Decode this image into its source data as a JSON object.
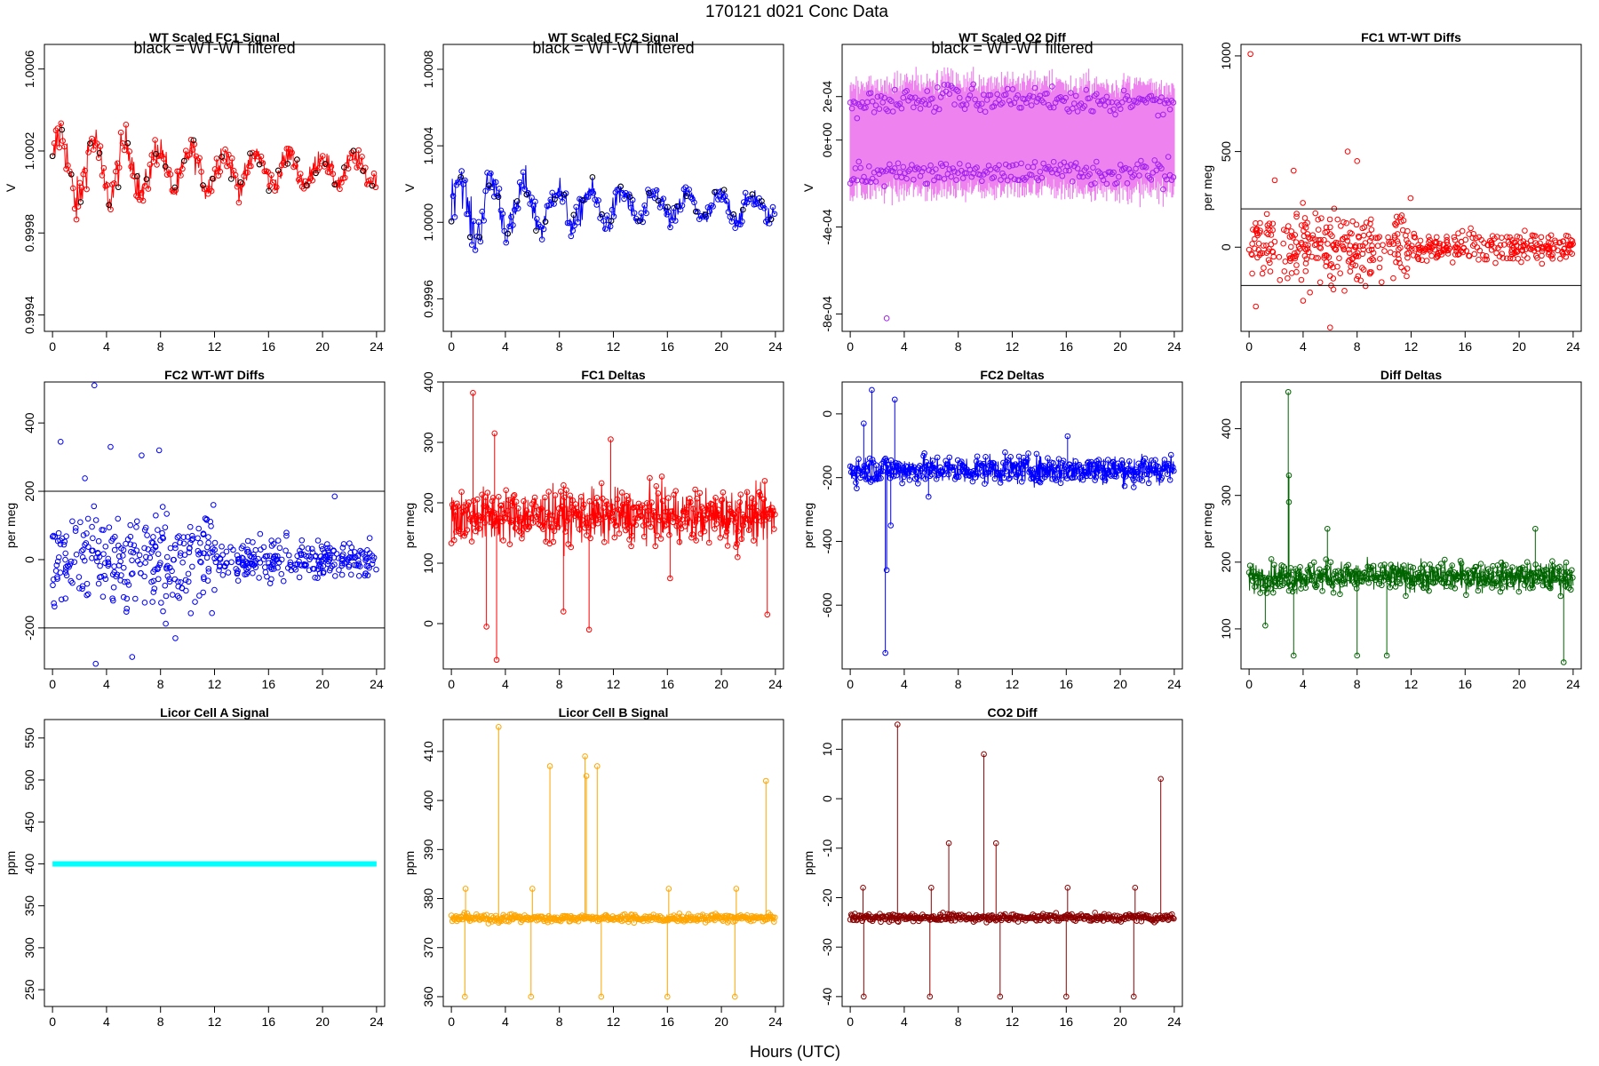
{
  "figure": {
    "title": "170121    d021    Conc Data",
    "xlabel": "Hours (UTC)"
  },
  "chart_data": [
    {
      "id": "fc1sig",
      "type": "line",
      "title": "WT Scaled FC1 Signal",
      "ylabel": "V",
      "note": "black = WT-WT filtered",
      "color": "#ff0000",
      "ylim": [
        0.99932,
        1.00072
      ],
      "yticks": [
        0.9994,
        0.9998,
        1.0002,
        1.0006
      ],
      "ytick_labels": [
        "0.9994",
        "0.9998",
        "1.0002",
        "1.0006"
      ],
      "xlim": [
        -0.6,
        24.6
      ],
      "xticks": [
        0,
        4,
        8,
        12,
        16,
        20,
        24
      ],
      "series": {
        "baseline": 1.00011,
        "amp": 0.00014,
        "noise": 4e-05,
        "style": "fc",
        "n": 380,
        "overlay_color": "#000000"
      }
    },
    {
      "id": "fc2sig",
      "type": "line",
      "title": "WT Scaled FC2 Signal",
      "ylabel": "V",
      "note": "black = WT-WT filtered",
      "color": "#0000ff",
      "ylim": [
        0.99943,
        1.00093
      ],
      "yticks": [
        0.9996,
        1.0,
        1.0004,
        1.0008
      ],
      "ytick_labels": [
        "0.9996",
        "1.0000",
        "1.0004",
        "1.0008"
      ],
      "xlim": [
        -0.6,
        24.6
      ],
      "xticks": [
        0,
        4,
        8,
        12,
        16,
        20,
        24
      ],
      "series": {
        "baseline": 1.00008,
        "amp": 0.00013,
        "noise": 4e-05,
        "style": "fc",
        "n": 380,
        "overlay_color": "#000000"
      }
    },
    {
      "id": "o2diff",
      "type": "line",
      "title": "WT Scaled O2 Diff",
      "ylabel": "V",
      "note": "black = WT-WT filtered",
      "color": "#ee82ee",
      "point_color": "#a020f0",
      "ylim": [
        -0.00088,
        0.00044
      ],
      "yticks": [
        -0.0008,
        -0.0004,
        0.0,
        0.0002
      ],
      "ytick_labels": [
        "-8e-04",
        "-4e-04",
        "0e+00",
        "2e-04"
      ],
      "xlim": [
        -0.6,
        24.6
      ],
      "xticks": [
        0,
        4,
        8,
        12,
        16,
        20,
        24
      ],
      "series": {
        "upper": 0.00019,
        "lower": -0.00015,
        "style": "band",
        "n": 380
      }
    },
    {
      "id": "fc1wt",
      "type": "scatter",
      "title": "FC1 WT-WT Diffs",
      "ylabel": "per meg",
      "color": "#ff0000",
      "ylim": [
        -440,
        1060
      ],
      "yticks": [
        0,
        500,
        1000
      ],
      "ytick_labels": [
        "0",
        "500",
        "1000"
      ],
      "hlines": [
        200,
        -200
      ],
      "xlim": [
        -0.6,
        24.6
      ],
      "xticks": [
        0,
        4,
        8,
        12,
        16,
        20,
        24
      ],
      "series": {
        "center": 0,
        "spread": 70,
        "style": "scatter",
        "n": 520,
        "outliers": [
          [
            0.1,
            1010
          ],
          [
            3.3,
            400
          ],
          [
            7.3,
            500
          ],
          [
            8.0,
            450
          ],
          [
            0.5,
            -310
          ],
          [
            4.0,
            -280
          ],
          [
            6.0,
            -420
          ],
          [
            1.9,
            350
          ]
        ]
      }
    },
    {
      "id": "fc2wt",
      "type": "scatter",
      "title": "FC2 WT-WT Diffs",
      "ylabel": "per meg",
      "color": "#0000ff",
      "ylim": [
        -320,
        520
      ],
      "yticks": [
        -200,
        0,
        200,
        400
      ],
      "ytick_labels": [
        "-200",
        "0",
        "200",
        "400"
      ],
      "hlines": [
        200,
        -200
      ],
      "xlim": [
        -0.6,
        24.6
      ],
      "xticks": [
        0,
        4,
        8,
        12,
        16,
        20,
        24
      ],
      "series": {
        "center": 0,
        "spread": 55,
        "style": "scatter",
        "n": 520,
        "outliers": [
          [
            3.1,
            510
          ],
          [
            0.6,
            345
          ],
          [
            4.3,
            330
          ],
          [
            6.6,
            305
          ],
          [
            7.9,
            320
          ],
          [
            2.4,
            238
          ],
          [
            3.2,
            -305
          ],
          [
            5.9,
            -285
          ],
          [
            9.1,
            -230
          ],
          [
            20.9,
            185
          ]
        ]
      }
    },
    {
      "id": "fc1d",
      "type": "line",
      "title": "FC1 Deltas",
      "ylabel": "per meg",
      "color": "#ff0000",
      "ylim": [
        -75,
        400
      ],
      "yticks": [
        0,
        100,
        200,
        300,
        400
      ],
      "ytick_labels": [
        "0",
        "100",
        "200",
        "300",
        "400"
      ],
      "xlim": [
        -0.6,
        24.6
      ],
      "xticks": [
        0,
        4,
        8,
        12,
        16,
        20,
        24
      ],
      "series": {
        "baseline": 178,
        "amp": 0,
        "noise": 22,
        "style": "spiky",
        "n": 700,
        "spikes": [
          [
            1.6,
            382
          ],
          [
            3.2,
            315
          ],
          [
            3.35,
            -60
          ],
          [
            2.6,
            -5
          ],
          [
            8.3,
            20
          ],
          [
            10.2,
            -10
          ],
          [
            23.4,
            15
          ],
          [
            11.8,
            305
          ],
          [
            16.2,
            75
          ],
          [
            21.2,
            110
          ]
        ]
      }
    },
    {
      "id": "fc2d",
      "type": "line",
      "title": "FC2 Deltas",
      "ylabel": "per meg",
      "color": "#0000ff",
      "ylim": [
        -800,
        100
      ],
      "yticks": [
        -600,
        -400,
        -200,
        0
      ],
      "ytick_labels": [
        "-600",
        "-400",
        "-200",
        "0"
      ],
      "xlim": [
        -0.6,
        24.6
      ],
      "xticks": [
        0,
        4,
        8,
        12,
        16,
        20,
        24
      ],
      "series": {
        "baseline": -175,
        "amp": 0,
        "noise": 22,
        "style": "spiky",
        "n": 700,
        "spikes": [
          [
            1.6,
            75
          ],
          [
            3.3,
            45
          ],
          [
            2.6,
            -750
          ],
          [
            2.7,
            -490
          ],
          [
            3.0,
            -350
          ],
          [
            1.0,
            -30
          ],
          [
            5.8,
            -260
          ],
          [
            16.1,
            -70
          ],
          [
            21.0,
            -230
          ]
        ]
      }
    },
    {
      "id": "diffd",
      "type": "line",
      "title": "Diff Deltas",
      "ylabel": "per meg",
      "color": "#006400",
      "ylim": [
        40,
        470
      ],
      "yticks": [
        100,
        200,
        300,
        400
      ],
      "ytick_labels": [
        "100",
        "200",
        "300",
        "400"
      ],
      "xlim": [
        -0.6,
        24.6
      ],
      "xticks": [
        0,
        4,
        8,
        12,
        16,
        20,
        24
      ],
      "series": {
        "baseline": 178,
        "amp": 0,
        "noise": 11,
        "style": "spiky",
        "n": 700,
        "spikes": [
          [
            2.9,
            455
          ],
          [
            2.95,
            330
          ],
          [
            2.95,
            290
          ],
          [
            3.3,
            60
          ],
          [
            8.0,
            60
          ],
          [
            10.2,
            60
          ],
          [
            23.3,
            50
          ],
          [
            5.8,
            250
          ],
          [
            21.2,
            250
          ],
          [
            1.2,
            105
          ]
        ]
      }
    },
    {
      "id": "licora",
      "type": "line",
      "title": "Licor Cell A Signal",
      "ylabel": "ppm",
      "color": "#00ffff",
      "ylim": [
        230,
        572
      ],
      "yticks": [
        250,
        300,
        350,
        400,
        450,
        500,
        550
      ],
      "ytick_labels": [
        "250",
        "300",
        "350",
        "400",
        "450",
        "500",
        "550"
      ],
      "xlim": [
        -0.6,
        24.6
      ],
      "xticks": [
        0,
        4,
        8,
        12,
        16,
        20,
        24
      ],
      "series": {
        "baseline": 400,
        "amp": 0,
        "noise": 0,
        "style": "flat",
        "n": 260
      }
    },
    {
      "id": "licorb",
      "type": "line",
      "title": "Licor Cell B Signal",
      "ylabel": "ppm",
      "color": "#ffa500",
      "ylim": [
        358,
        416.5
      ],
      "yticks": [
        360,
        370,
        380,
        390,
        400,
        410
      ],
      "ytick_labels": [
        "360",
        "370",
        "380",
        "390",
        "400",
        "410"
      ],
      "xlim": [
        -0.6,
        24.6
      ],
      "xticks": [
        0,
        4,
        8,
        12,
        16,
        20,
        24
      ],
      "series": {
        "baseline": 376,
        "amp": 0,
        "noise": 0.4,
        "style": "spiky",
        "n": 700,
        "spikes": [
          [
            3.5,
            415
          ],
          [
            9.9,
            409
          ],
          [
            10.0,
            405
          ],
          [
            23.3,
            404
          ],
          [
            7.3,
            407
          ],
          [
            10.8,
            407
          ],
          [
            1.0,
            360
          ],
          [
            1.05,
            382
          ],
          [
            5.9,
            360
          ],
          [
            6.0,
            382
          ],
          [
            11.1,
            360
          ],
          [
            16.0,
            360
          ],
          [
            16.1,
            382
          ],
          [
            21.0,
            360
          ],
          [
            21.1,
            382
          ]
        ]
      }
    },
    {
      "id": "co2diff",
      "type": "line",
      "title": "CO2 Diff",
      "ylabel": "ppm",
      "color": "#8b0000",
      "ylim": [
        -42,
        16
      ],
      "yticks": [
        -40,
        -30,
        -20,
        -10,
        0,
        10
      ],
      "ytick_labels": [
        "-40",
        "-30",
        "-20",
        "-10",
        "0",
        "10"
      ],
      "xlim": [
        -0.6,
        24.6
      ],
      "xticks": [
        0,
        4,
        8,
        12,
        16,
        20,
        24
      ],
      "series": {
        "baseline": -24,
        "amp": 0,
        "noise": 0.4,
        "style": "spiky",
        "n": 700,
        "spikes": [
          [
            3.5,
            15
          ],
          [
            9.9,
            9
          ],
          [
            23.0,
            4
          ],
          [
            7.3,
            -9
          ],
          [
            10.8,
            -9
          ],
          [
            1.0,
            -40
          ],
          [
            0.95,
            -18
          ],
          [
            5.9,
            -40
          ],
          [
            6.0,
            -18
          ],
          [
            11.1,
            -40
          ],
          [
            16.0,
            -40
          ],
          [
            16.1,
            -18
          ],
          [
            21.0,
            -40
          ],
          [
            21.1,
            -18
          ]
        ]
      }
    }
  ]
}
